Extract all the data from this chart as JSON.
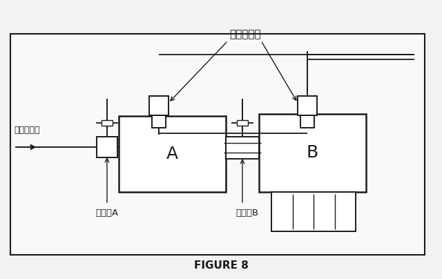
{
  "title": "FIGURE 8",
  "label_pressure": "圧力変換器",
  "label_gas": "ガス流入口",
  "label_valve_a": "バルブA",
  "label_valve_b": "バルブB",
  "label_a": "A",
  "label_b": "B"
}
